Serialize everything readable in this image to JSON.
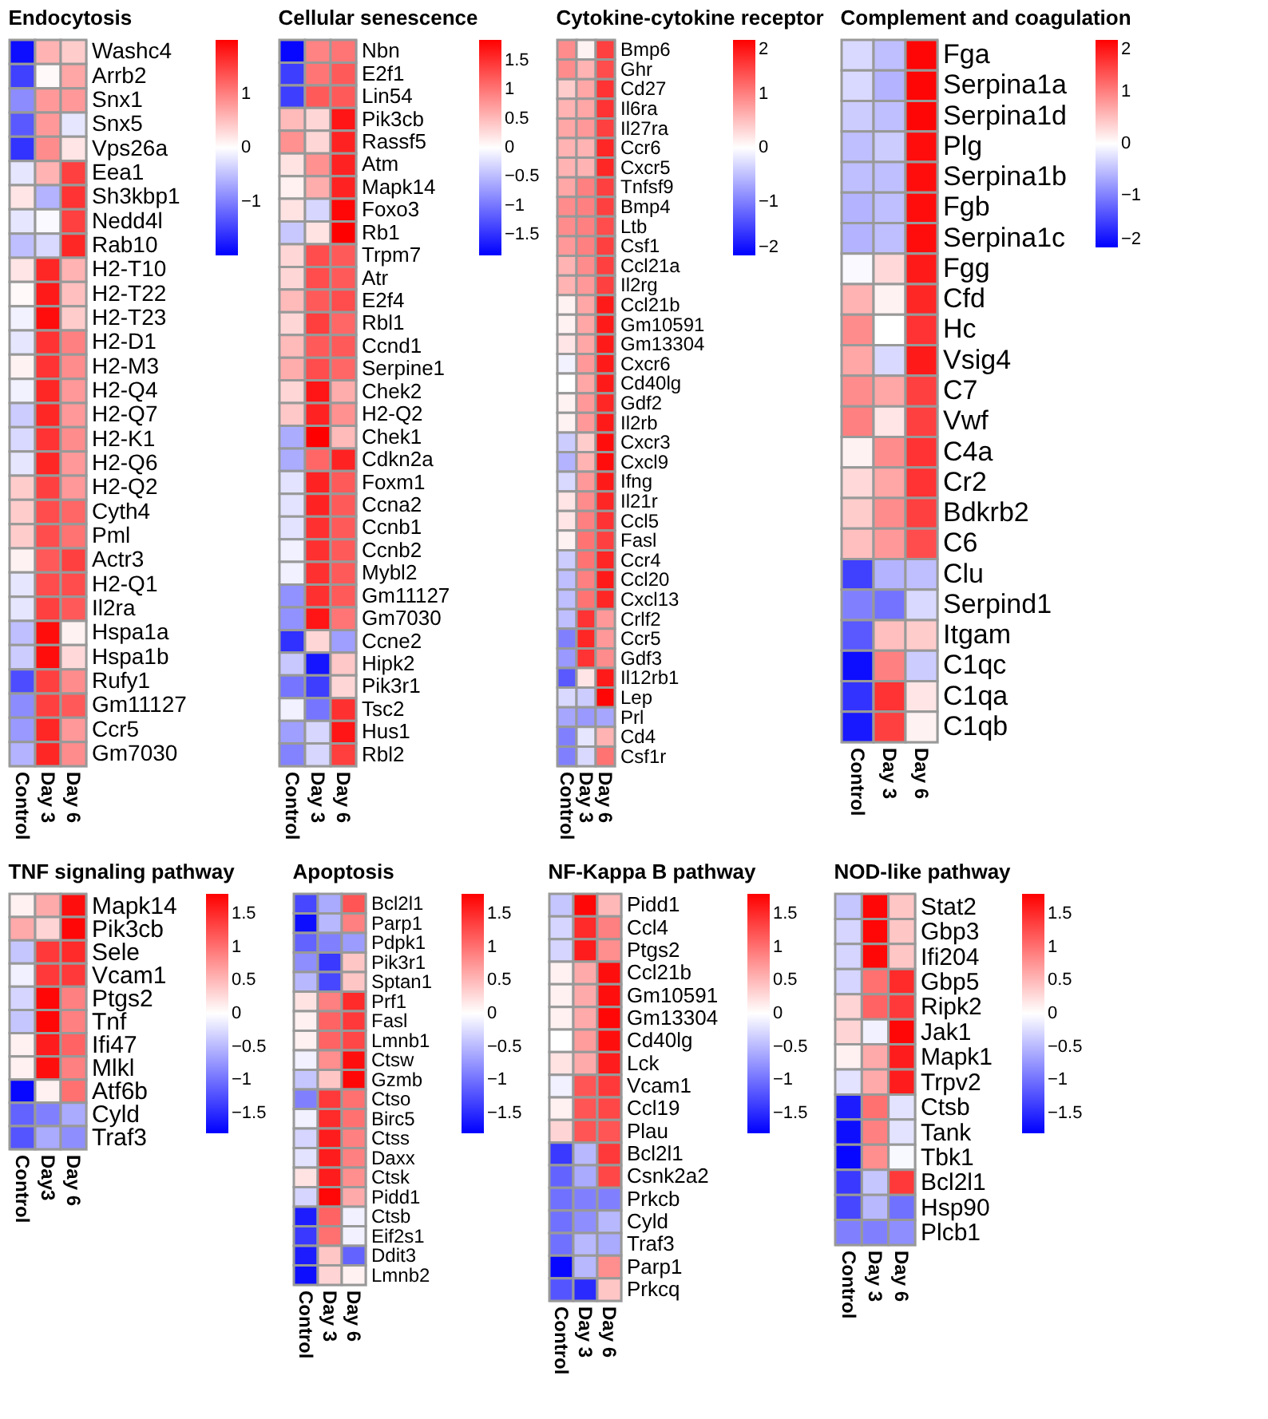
{
  "chart_data": [
    {
      "type": "heatmap",
      "title": "Endocytosis",
      "categories": [
        "Control",
        "Day 3",
        "Day 6"
      ],
      "y_categories": [
        "Washc4",
        "Arrb2",
        "Snx1",
        "Snx5",
        "Vps26a",
        "Eea1",
        "Sh3kbp1",
        "Nedd4l",
        "Rab10",
        "H2-T10",
        "H2-T22",
        "H2-T23",
        "H2-D1",
        "H2-M3",
        "H2-Q4",
        "H2-Q7",
        "H2-K1",
        "H2-Q6",
        "H2-Q2",
        "Cyth4",
        "Pml",
        "Actr3",
        "H2-Q1",
        "Il2ra",
        "Hspa1a",
        "Hspa1b",
        "Rufy1",
        "Gm11127",
        "Ccr5",
        "Gm7030"
      ],
      "cells": [
        [
          -1.9,
          0.6,
          0.4
        ],
        [
          -1.5,
          0.05,
          0.7
        ],
        [
          -0.9,
          0.8,
          0.8
        ],
        [
          -1.3,
          0.8,
          -0.2
        ],
        [
          -1.6,
          0.9,
          0.2
        ],
        [
          -0.2,
          0.6,
          1.5
        ],
        [
          0.2,
          -0.6,
          1.6
        ],
        [
          -0.2,
          -0.05,
          1.5
        ],
        [
          -0.5,
          -0.3,
          1.7
        ],
        [
          0.2,
          1.7,
          0.6
        ],
        [
          0.05,
          1.8,
          0.5
        ],
        [
          -0.1,
          1.9,
          0.4
        ],
        [
          -0.2,
          1.6,
          1.0
        ],
        [
          0.1,
          1.6,
          0.9
        ],
        [
          -0.1,
          1.7,
          0.8
        ],
        [
          -0.4,
          1.7,
          0.8
        ],
        [
          -0.3,
          1.6,
          0.9
        ],
        [
          -0.2,
          1.7,
          0.8
        ],
        [
          0.4,
          1.5,
          0.8
        ],
        [
          0.4,
          1.4,
          1.2
        ],
        [
          0.4,
          1.4,
          1.1
        ],
        [
          0.1,
          1.3,
          1.5
        ],
        [
          -0.2,
          1.4,
          1.4
        ],
        [
          -0.2,
          1.5,
          1.3
        ],
        [
          -0.5,
          1.9,
          0.1
        ],
        [
          -0.4,
          1.9,
          0.3
        ],
        [
          -1.4,
          1.5,
          0.9
        ],
        [
          -0.9,
          1.5,
          1.3
        ],
        [
          -0.8,
          1.7,
          0.8
        ],
        [
          -0.6,
          1.7,
          0.9
        ]
      ],
      "clim": [
        -2,
        2
      ],
      "cticks": [
        -1,
        0,
        1
      ]
    },
    {
      "type": "heatmap",
      "title": "Cellular senescence",
      "categories": [
        "Control",
        "Day 3",
        "Day 6"
      ],
      "y_categories": [
        "Nbn",
        "E2f1",
        "Lin54",
        "Pik3cb",
        "Rassf5",
        "Atm",
        "Mapk14",
        "Foxo3",
        "Rb1",
        "Trpm7",
        "Atr",
        "E2f4",
        "Rbl1",
        "Ccnd1",
        "Serpine1",
        "Chek2",
        "H2-Q2",
        "Chek1",
        "Cdkn2a",
        "Foxm1",
        "Ccna2",
        "Ccnb1",
        "Ccnb2",
        "Mybl2",
        "Gm11127",
        "Gm7030",
        "Ccne2",
        "Hipk2",
        "Pik3r1",
        "Tsc2",
        "Hus1",
        "Rbl2"
      ],
      "cells": [
        [
          -1.8,
          0.9,
          1.0
        ],
        [
          -1.4,
          1.0,
          1.2
        ],
        [
          -1.4,
          1.2,
          1.2
        ],
        [
          0.5,
          0.3,
          1.7
        ],
        [
          0.8,
          0.3,
          1.6
        ],
        [
          0.2,
          0.8,
          1.6
        ],
        [
          0.1,
          0.6,
          1.6
        ],
        [
          0.2,
          -0.3,
          1.8
        ],
        [
          -0.4,
          0.2,
          1.85
        ],
        [
          0.3,
          1.3,
          1.2
        ],
        [
          0.3,
          1.3,
          1.2
        ],
        [
          0.5,
          1.2,
          1.3
        ],
        [
          0.3,
          1.4,
          1.1
        ],
        [
          0.5,
          1.2,
          1.2
        ],
        [
          0.6,
          1.3,
          1.1
        ],
        [
          0.3,
          1.7,
          0.6
        ],
        [
          0.4,
          1.6,
          0.8
        ],
        [
          -0.6,
          1.85,
          0.5
        ],
        [
          -0.6,
          1.1,
          1.6
        ],
        [
          -0.2,
          1.6,
          1.2
        ],
        [
          -0.2,
          1.6,
          1.2
        ],
        [
          -0.2,
          1.5,
          1.2
        ],
        [
          -0.1,
          1.5,
          1.2
        ],
        [
          -0.1,
          1.5,
          1.2
        ],
        [
          -0.8,
          1.5,
          1.2
        ],
        [
          -0.8,
          1.7,
          1.0
        ],
        [
          -1.5,
          0.3,
          -0.7
        ],
        [
          -0.4,
          -1.7,
          0.4
        ],
        [
          -1.0,
          -1.4,
          0.3
        ],
        [
          -0.1,
          -1.0,
          1.5
        ],
        [
          -0.7,
          -0.3,
          1.7
        ],
        [
          -0.9,
          -0.3,
          1.4
        ]
      ],
      "clim": [
        -1.85,
        1.85
      ],
      "cticks": [
        -1.5,
        -1,
        -0.5,
        0,
        0.5,
        1,
        1.5
      ]
    },
    {
      "type": "heatmap",
      "title": "Cytokine-cytokine receptor",
      "categories": [
        "Control",
        "Day 3",
        "Day 6"
      ],
      "y_categories": [
        "Bmp6",
        "Ghr",
        "Cd27",
        "Il6ra",
        "Il27ra",
        "Ccr6",
        "Cxcr5",
        "Tnfsf9",
        "Bmp4",
        "Ltb",
        "Csf1",
        "Ccl21a",
        "Il2rg",
        "Ccl21b",
        "Gm10591",
        "Gm13304",
        "Cxcr6",
        "Cd40lg",
        "Gdf2",
        "Il2rb",
        "Cxcr3",
        "Cxcl9",
        "Ifng",
        "Il21r",
        "Ccl5",
        "Fasl",
        "Ccr4",
        "Ccl20",
        "Cxcl13",
        "Crlf2",
        "Ccr5",
        "Gdf3",
        "Il12rb1",
        "Lep",
        "Prl",
        "Cd4",
        "Csf1r"
      ],
      "cells": [
        [
          0.9,
          0.1,
          1.5
        ],
        [
          0.9,
          0.6,
          1.4
        ],
        [
          0.4,
          0.7,
          1.6
        ],
        [
          0.6,
          0.7,
          1.6
        ],
        [
          0.7,
          0.8,
          1.5
        ],
        [
          0.6,
          0.6,
          1.7
        ],
        [
          0.6,
          0.6,
          1.7
        ],
        [
          0.7,
          1.0,
          1.5
        ],
        [
          0.9,
          1.0,
          1.5
        ],
        [
          0.9,
          1.0,
          1.4
        ],
        [
          0.8,
          1.0,
          1.5
        ],
        [
          0.6,
          0.9,
          1.5
        ],
        [
          0.6,
          0.8,
          1.5
        ],
        [
          0.1,
          0.7,
          1.8
        ],
        [
          0.1,
          0.7,
          1.8
        ],
        [
          0.2,
          0.7,
          1.8
        ],
        [
          -0.1,
          0.8,
          1.8
        ],
        [
          0.0,
          0.7,
          1.8
        ],
        [
          0.1,
          0.8,
          1.7
        ],
        [
          0.1,
          0.8,
          1.8
        ],
        [
          -0.4,
          0.4,
          1.9
        ],
        [
          -0.6,
          0.6,
          1.9
        ],
        [
          -0.3,
          0.8,
          1.8
        ],
        [
          0.2,
          0.9,
          1.7
        ],
        [
          0.2,
          1.0,
          1.6
        ],
        [
          0.1,
          1.1,
          1.5
        ],
        [
          -0.4,
          1.1,
          1.7
        ],
        [
          -0.5,
          1.0,
          1.8
        ],
        [
          -0.5,
          1.1,
          1.7
        ],
        [
          -0.5,
          1.6,
          0.8
        ],
        [
          -1.0,
          1.7,
          0.8
        ],
        [
          -0.8,
          1.6,
          0.9
        ],
        [
          -1.3,
          0.2,
          1.8
        ],
        [
          -0.3,
          -0.4,
          1.95
        ],
        [
          -0.7,
          -0.8,
          -0.7
        ],
        [
          -1.0,
          -0.2,
          0.6
        ],
        [
          -1.0,
          -0.3,
          1.1
        ]
      ],
      "clim": [
        -2,
        2
      ],
      "cticks": [
        -2,
        -1,
        0,
        1,
        2
      ]
    },
    {
      "type": "heatmap",
      "title": "Complement and coagulation",
      "categories": [
        "Control",
        "Day 3",
        "Day 6"
      ],
      "y_categories": [
        "Fga",
        "Serpina1a",
        "Serpina1d",
        "Plg",
        "Serpina1b",
        "Fgb",
        "Serpina1c",
        "Fgg",
        "Cfd",
        "Hc",
        "Vsig4",
        "C7",
        "Vwf",
        "C4a",
        "Cr2",
        "Bdkrb2",
        "C6",
        "Clu",
        "Serpind1",
        "Itgam",
        "C1qc",
        "C1qa",
        "C1qb"
      ],
      "cells": [
        [
          -0.3,
          -0.5,
          1.95
        ],
        [
          -0.3,
          -0.6,
          1.95
        ],
        [
          -0.4,
          -0.5,
          1.95
        ],
        [
          -0.5,
          -0.4,
          1.9
        ],
        [
          -0.5,
          -0.5,
          1.9
        ],
        [
          -0.6,
          -0.5,
          1.9
        ],
        [
          -0.6,
          -0.5,
          1.9
        ],
        [
          -0.05,
          0.3,
          1.8
        ],
        [
          0.6,
          0.1,
          1.7
        ],
        [
          0.9,
          0.0,
          1.6
        ],
        [
          0.7,
          -0.3,
          1.8
        ],
        [
          0.9,
          0.7,
          1.5
        ],
        [
          1.0,
          0.2,
          1.5
        ],
        [
          0.1,
          0.9,
          1.6
        ],
        [
          0.3,
          0.7,
          1.6
        ],
        [
          0.4,
          0.9,
          1.5
        ],
        [
          0.5,
          0.8,
          1.4
        ],
        [
          -1.5,
          -0.6,
          -0.5
        ],
        [
          -1.0,
          -1.1,
          -0.3
        ],
        [
          -1.3,
          0.5,
          0.4
        ],
        [
          -1.9,
          1.0,
          -0.4
        ],
        [
          -1.6,
          1.6,
          0.2
        ],
        [
          -1.8,
          1.5,
          0.1
        ]
      ],
      "clim": [
        -2,
        2
      ],
      "cticks": [
        -2,
        -1,
        0,
        1,
        2
      ]
    },
    {
      "type": "heatmap",
      "title": "TNF signaling pathway",
      "categories": [
        "Control",
        "Day3",
        "Day 6"
      ],
      "y_categories": [
        "Mapk14",
        "Pik3cb",
        "Sele",
        "Vcam1",
        "Ptgs2",
        "Tnf",
        "Ifi47",
        "Mlkl",
        "Atf6b",
        "Cyld",
        "Traf3"
      ],
      "cells": [
        [
          0.1,
          0.6,
          1.7
        ],
        [
          0.6,
          0.3,
          1.75
        ],
        [
          -0.4,
          1.4,
          1.5
        ],
        [
          -0.1,
          1.4,
          1.4
        ],
        [
          -0.3,
          1.75,
          0.9
        ],
        [
          -0.4,
          1.75,
          0.9
        ],
        [
          0.1,
          1.6,
          1.1
        ],
        [
          0.1,
          1.7,
          0.9
        ],
        [
          -1.75,
          0.1,
          1.0
        ],
        [
          -1.1,
          -0.9,
          -0.6
        ],
        [
          -1.2,
          -0.6,
          -0.8
        ]
      ],
      "clim": [
        -1.8,
        1.8
      ],
      "cticks": [
        -1.5,
        -1,
        -0.5,
        0,
        0.5,
        1,
        1.5
      ]
    },
    {
      "type": "heatmap",
      "title": "Apoptosis",
      "categories": [
        "Control",
        "Day 3",
        "Day 6"
      ],
      "y_categories": [
        "Bcl2l1",
        "Parp1",
        "Pdpk1",
        "Pik3r1",
        "Sptan1",
        "Prf1",
        "Fasl",
        "Lmnb1",
        "Ctsw",
        "Gzmb",
        "Ctso",
        "Birc5",
        "Ctss",
        "Daxx",
        "Ctsk",
        "Pidd1",
        "Ctsb",
        "Eif2s1",
        "Ddit3",
        "Lmnb2"
      ],
      "cells": [
        [
          -1.3,
          -0.6,
          1.2
        ],
        [
          -1.7,
          -0.5,
          0.9
        ],
        [
          -1.1,
          -0.9,
          -0.7
        ],
        [
          -0.8,
          -1.4,
          0.4
        ],
        [
          -0.5,
          -1.3,
          0.4
        ],
        [
          0.2,
          0.9,
          1.5
        ],
        [
          0.1,
          1.1,
          1.4
        ],
        [
          0.1,
          1.1,
          1.3
        ],
        [
          -0.1,
          0.8,
          1.7
        ],
        [
          -0.4,
          0.4,
          1.75
        ],
        [
          -0.9,
          1.4,
          1.0
        ],
        [
          -0.1,
          1.5,
          1.0
        ],
        [
          -0.3,
          1.6,
          0.9
        ],
        [
          -0.2,
          1.6,
          0.9
        ],
        [
          0.2,
          1.6,
          0.8
        ],
        [
          -0.3,
          1.75,
          0.6
        ],
        [
          -1.6,
          1.1,
          -0.1
        ],
        [
          -1.4,
          1.0,
          -0.1
        ],
        [
          -1.6,
          0.4,
          -1.1
        ],
        [
          -1.7,
          0.3,
          0.1
        ]
      ],
      "clim": [
        -1.8,
        1.8
      ],
      "cticks": [
        -1.5,
        -1,
        -0.5,
        0,
        0.5,
        1,
        1.5
      ]
    },
    {
      "type": "heatmap",
      "title": "NF-Kappa B pathway",
      "categories": [
        "Control",
        "Day 3",
        "Day 6"
      ],
      "y_categories": [
        "Pidd1",
        "Ccl4",
        "Ptgs2",
        "Ccl21b",
        "Gm10591",
        "Gm13304",
        "Cd40lg",
        "Lck",
        "Vcam1",
        "Ccl19",
        "Plau",
        "Bcl2l1",
        "Csnk2a2",
        "Prkcb",
        "Cyld",
        "Traf3",
        "Parp1",
        "Prkcq"
      ],
      "cells": [
        [
          -0.4,
          1.75,
          0.5
        ],
        [
          -0.3,
          1.5,
          0.9
        ],
        [
          -0.3,
          1.6,
          0.8
        ],
        [
          0.1,
          0.6,
          1.7
        ],
        [
          0.1,
          0.6,
          1.7
        ],
        [
          0.1,
          0.6,
          1.75
        ],
        [
          0.0,
          0.7,
          1.7
        ],
        [
          0.2,
          0.6,
          1.6
        ],
        [
          -0.1,
          1.2,
          1.4
        ],
        [
          0.1,
          1.2,
          1.3
        ],
        [
          0.3,
          1.2,
          1.2
        ],
        [
          -1.4,
          -0.5,
          1.4
        ],
        [
          -1.1,
          -0.6,
          1.3
        ],
        [
          -1.0,
          -0.9,
          -0.9
        ],
        [
          -1.0,
          -0.8,
          -0.5
        ],
        [
          -1.0,
          -0.5,
          -0.6
        ],
        [
          -1.75,
          -0.5,
          0.8
        ],
        [
          -1.2,
          -1.5,
          0.4
        ]
      ],
      "clim": [
        -1.8,
        1.8
      ],
      "cticks": [
        -1.5,
        -1,
        -0.5,
        0,
        0.5,
        1,
        1.5
      ]
    },
    {
      "type": "heatmap",
      "title": "NOD-like pathway",
      "categories": [
        "Control",
        "Day 3",
        "Day 6"
      ],
      "y_categories": [
        "Stat2",
        "Gbp3",
        "Ifi204",
        "Gbp5",
        "Ripk2",
        "Jak1",
        "Mapk1",
        "Trpv2",
        "Ctsb",
        "Tank",
        "Tbk1",
        "Bcl2l1",
        "Hsp90",
        "Plcb1"
      ],
      "cells": [
        [
          -0.4,
          1.75,
          0.4
        ],
        [
          -0.3,
          1.75,
          0.4
        ],
        [
          -0.3,
          1.75,
          0.4
        ],
        [
          -0.3,
          1.0,
          1.5
        ],
        [
          0.3,
          1.1,
          1.4
        ],
        [
          0.3,
          -0.1,
          1.75
        ],
        [
          0.1,
          0.6,
          1.6
        ],
        [
          -0.2,
          0.6,
          1.6
        ],
        [
          -1.6,
          1.0,
          -0.2
        ],
        [
          -1.7,
          0.9,
          -0.2
        ],
        [
          -1.75,
          0.8,
          -0.05
        ],
        [
          -1.4,
          -0.4,
          1.4
        ],
        [
          -1.3,
          -0.5,
          -1.0
        ],
        [
          -0.9,
          -0.9,
          -0.8
        ]
      ],
      "clim": [
        -1.8,
        1.8
      ],
      "cticks": [
        -1.5,
        -1,
        -0.5,
        0,
        0.5,
        1,
        1.5
      ]
    }
  ]
}
